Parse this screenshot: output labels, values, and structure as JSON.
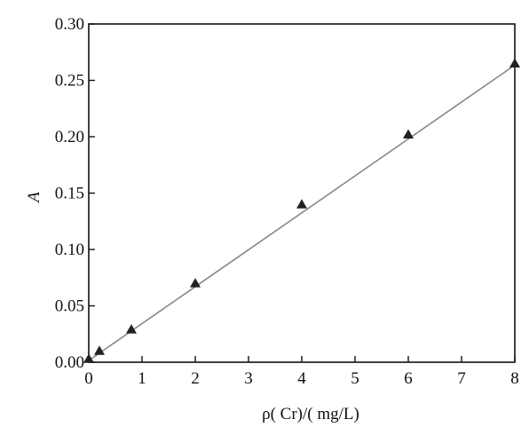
{
  "chart_data": {
    "type": "scatter",
    "title": "",
    "xlabel": "ρ( Cr)/( mg/L)",
    "ylabel": "A",
    "xlim": [
      0,
      8
    ],
    "ylim": [
      0,
      0.3
    ],
    "x_ticks": [
      0,
      1,
      2,
      3,
      4,
      5,
      6,
      7,
      8
    ],
    "y_ticks": [
      0.0,
      0.05,
      0.1,
      0.15,
      0.2,
      0.25,
      0.3
    ],
    "x_tick_labels": [
      "0",
      "1",
      "2",
      "3",
      "4",
      "5",
      "6",
      "7",
      "8"
    ],
    "y_tick_labels": [
      "0.00",
      "0.05",
      "0.10",
      "0.15",
      "0.20",
      "0.25",
      "0.30"
    ],
    "grid": false,
    "legend": "none",
    "marker": "triangle",
    "series": [
      {
        "x": [
          0,
          0.2,
          0.8,
          2,
          4,
          6,
          8
        ],
        "y": [
          0.003,
          0.01,
          0.029,
          0.07,
          0.14,
          0.202,
          0.265
        ]
      }
    ],
    "fit_line": {
      "x": [
        0,
        8
      ],
      "y": [
        0.0015,
        0.2635
      ]
    },
    "colors": {
      "marker": "#222222",
      "fit_line": "#888888",
      "axis": "#111111"
    }
  }
}
